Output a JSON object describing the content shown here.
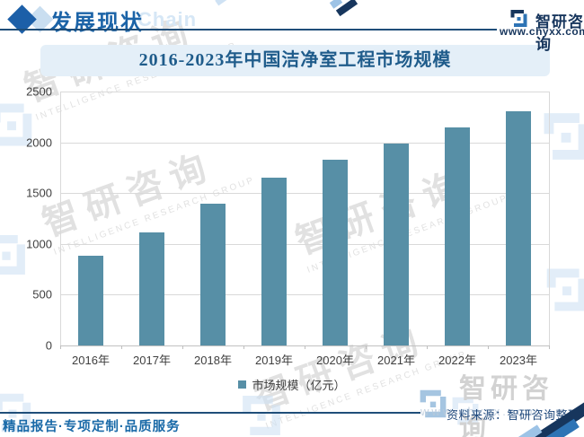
{
  "header": {
    "section_title": "发展现状",
    "watermark_word": "Chain",
    "brand": "智研咨询",
    "url": "www.chyxx.com"
  },
  "chart_data": {
    "type": "bar",
    "title": "2016-2023年中国洁净室工程市场规模",
    "categories": [
      "2016年",
      "2017年",
      "2018年",
      "2019年",
      "2020年",
      "2021年",
      "2022年",
      "2023年"
    ],
    "values": [
      880,
      1110,
      1400,
      1655,
      1830,
      1990,
      2150,
      2310
    ],
    "legend": "市场规模（亿元）",
    "xlabel": "",
    "ylabel": "",
    "ylim": [
      0,
      2500
    ],
    "ytick_step": 500,
    "grid": true,
    "legend_position": "bottom",
    "bar_color": "#578fa6"
  },
  "footer": {
    "services": "精品报告·专项定制·品质服务",
    "source": "资料来源：智研咨询整理"
  },
  "watermark": {
    "brand": "智研咨询",
    "subtitle": "INTELLIGENCE RESEARCH GROUP",
    "url": "www.chyxx.com"
  },
  "colors": {
    "bar": "#578fa6",
    "accent_navy": "#17365d",
    "accent_blue": "#1b63a7",
    "title_text": "#1f5c8b",
    "title_bg": "#e4eff8",
    "grid": "#d9d9d9",
    "light_blue": "#cfe2f4"
  }
}
